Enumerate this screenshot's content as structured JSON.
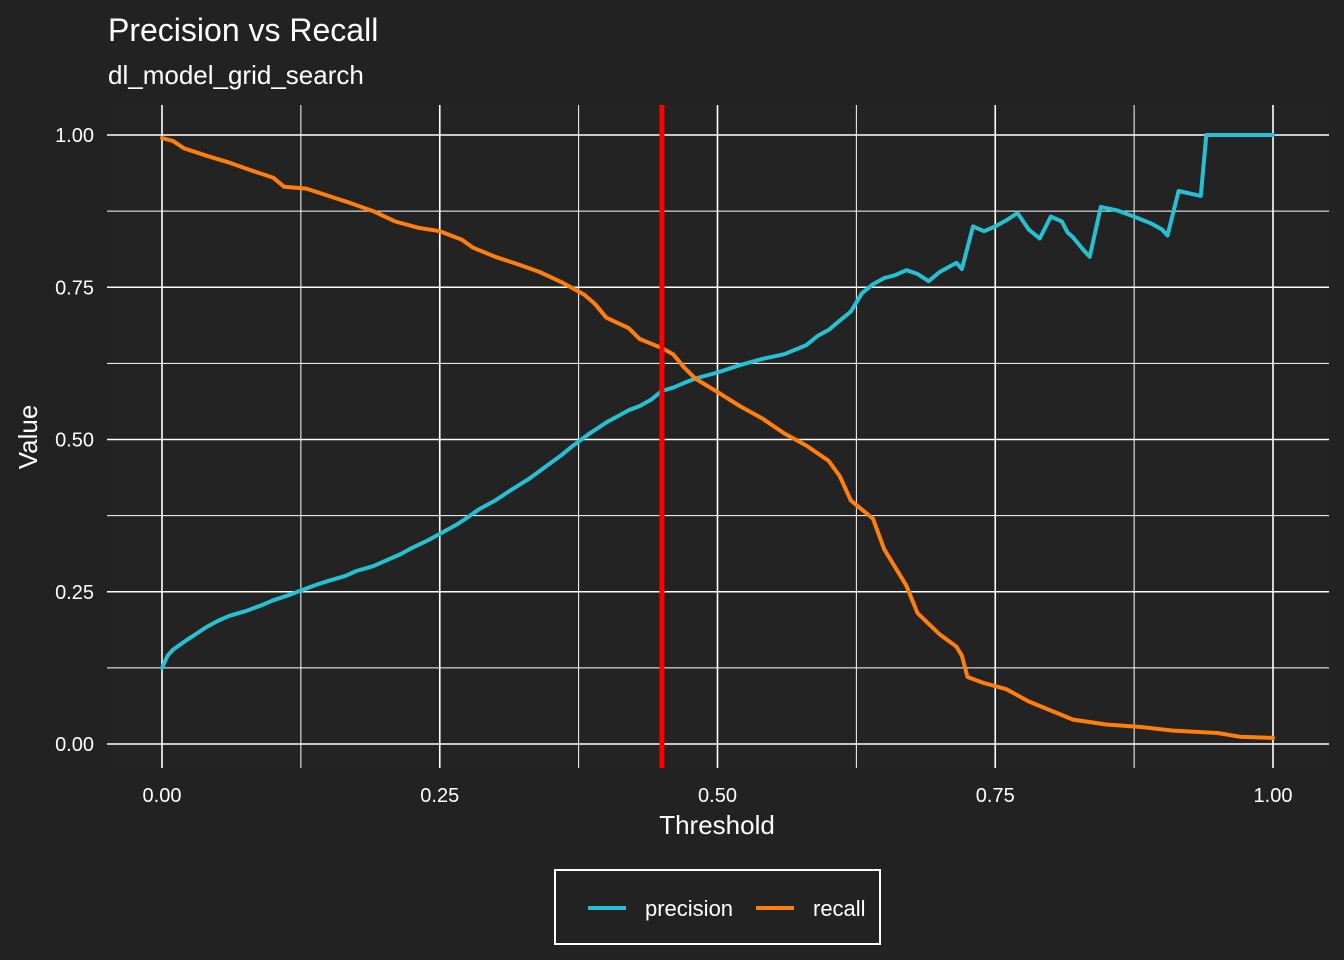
{
  "chart_data": {
    "type": "line",
    "title": "Precision vs Recall",
    "subtitle": "dl_model_grid_search",
    "xlabel": "Threshold",
    "ylabel": "Value",
    "xlim": [
      0,
      1
    ],
    "ylim": [
      0,
      1
    ],
    "x_ticks": [
      "0.00",
      "0.25",
      "0.50",
      "0.75",
      "1.00"
    ],
    "y_ticks": [
      "0.00",
      "0.25",
      "0.50",
      "0.75",
      "1.00"
    ],
    "grid": true,
    "legend_position": "bottom",
    "vline": {
      "x": 0.45,
      "color": "#ff0000"
    },
    "series": [
      {
        "name": "precision",
        "color": "#26c0d3",
        "points": [
          [
            0.0,
            0.125
          ],
          [
            0.005,
            0.145
          ],
          [
            0.01,
            0.155
          ],
          [
            0.02,
            0.168
          ],
          [
            0.03,
            0.18
          ],
          [
            0.04,
            0.192
          ],
          [
            0.05,
            0.202
          ],
          [
            0.06,
            0.21
          ],
          [
            0.075,
            0.218
          ],
          [
            0.09,
            0.228
          ],
          [
            0.1,
            0.236
          ],
          [
            0.115,
            0.245
          ],
          [
            0.125,
            0.252
          ],
          [
            0.14,
            0.262
          ],
          [
            0.15,
            0.268
          ],
          [
            0.165,
            0.276
          ],
          [
            0.175,
            0.284
          ],
          [
            0.19,
            0.292
          ],
          [
            0.2,
            0.3
          ],
          [
            0.215,
            0.312
          ],
          [
            0.225,
            0.322
          ],
          [
            0.24,
            0.335
          ],
          [
            0.25,
            0.345
          ],
          [
            0.265,
            0.36
          ],
          [
            0.275,
            0.372
          ],
          [
            0.285,
            0.385
          ],
          [
            0.3,
            0.4
          ],
          [
            0.315,
            0.418
          ],
          [
            0.33,
            0.435
          ],
          [
            0.345,
            0.455
          ],
          [
            0.36,
            0.475
          ],
          [
            0.37,
            0.49
          ],
          [
            0.385,
            0.51
          ],
          [
            0.4,
            0.528
          ],
          [
            0.41,
            0.538
          ],
          [
            0.42,
            0.548
          ],
          [
            0.43,
            0.555
          ],
          [
            0.44,
            0.565
          ],
          [
            0.45,
            0.58
          ],
          [
            0.46,
            0.585
          ],
          [
            0.47,
            0.593
          ],
          [
            0.48,
            0.6
          ],
          [
            0.5,
            0.61
          ],
          [
            0.52,
            0.622
          ],
          [
            0.54,
            0.632
          ],
          [
            0.56,
            0.64
          ],
          [
            0.58,
            0.655
          ],
          [
            0.59,
            0.67
          ],
          [
            0.6,
            0.68
          ],
          [
            0.61,
            0.695
          ],
          [
            0.62,
            0.71
          ],
          [
            0.63,
            0.74
          ],
          [
            0.64,
            0.755
          ],
          [
            0.65,
            0.765
          ],
          [
            0.66,
            0.77
          ],
          [
            0.67,
            0.778
          ],
          [
            0.68,
            0.772
          ],
          [
            0.69,
            0.76
          ],
          [
            0.7,
            0.775
          ],
          [
            0.71,
            0.785
          ],
          [
            0.715,
            0.79
          ],
          [
            0.72,
            0.78
          ],
          [
            0.73,
            0.85
          ],
          [
            0.74,
            0.842
          ],
          [
            0.75,
            0.85
          ],
          [
            0.76,
            0.86
          ],
          [
            0.77,
            0.872
          ],
          [
            0.78,
            0.845
          ],
          [
            0.79,
            0.83
          ],
          [
            0.8,
            0.866
          ],
          [
            0.81,
            0.858
          ],
          [
            0.815,
            0.84
          ],
          [
            0.82,
            0.832
          ],
          [
            0.83,
            0.81
          ],
          [
            0.835,
            0.8
          ],
          [
            0.845,
            0.882
          ],
          [
            0.86,
            0.876
          ],
          [
            0.875,
            0.866
          ],
          [
            0.89,
            0.855
          ],
          [
            0.9,
            0.845
          ],
          [
            0.905,
            0.835
          ],
          [
            0.915,
            0.908
          ],
          [
            0.935,
            0.9
          ],
          [
            0.94,
            1.0
          ],
          [
            1.0,
            1.0
          ]
        ]
      },
      {
        "name": "recall",
        "color": "#ff7f0e",
        "points": [
          [
            0.0,
            0.995
          ],
          [
            0.01,
            0.99
          ],
          [
            0.02,
            0.978
          ],
          [
            0.04,
            0.966
          ],
          [
            0.06,
            0.955
          ],
          [
            0.08,
            0.942
          ],
          [
            0.1,
            0.93
          ],
          [
            0.11,
            0.915
          ],
          [
            0.13,
            0.912
          ],
          [
            0.15,
            0.9
          ],
          [
            0.17,
            0.888
          ],
          [
            0.19,
            0.875
          ],
          [
            0.21,
            0.858
          ],
          [
            0.23,
            0.848
          ],
          [
            0.25,
            0.842
          ],
          [
            0.27,
            0.828
          ],
          [
            0.28,
            0.815
          ],
          [
            0.3,
            0.8
          ],
          [
            0.32,
            0.788
          ],
          [
            0.34,
            0.775
          ],
          [
            0.36,
            0.758
          ],
          [
            0.38,
            0.738
          ],
          [
            0.39,
            0.722
          ],
          [
            0.4,
            0.7
          ],
          [
            0.42,
            0.683
          ],
          [
            0.43,
            0.665
          ],
          [
            0.45,
            0.65
          ],
          [
            0.46,
            0.64
          ],
          [
            0.47,
            0.618
          ],
          [
            0.48,
            0.6
          ],
          [
            0.5,
            0.578
          ],
          [
            0.52,
            0.555
          ],
          [
            0.54,
            0.535
          ],
          [
            0.56,
            0.51
          ],
          [
            0.58,
            0.49
          ],
          [
            0.6,
            0.465
          ],
          [
            0.61,
            0.44
          ],
          [
            0.62,
            0.4
          ],
          [
            0.64,
            0.37
          ],
          [
            0.65,
            0.32
          ],
          [
            0.67,
            0.26
          ],
          [
            0.68,
            0.215
          ],
          [
            0.7,
            0.18
          ],
          [
            0.715,
            0.16
          ],
          [
            0.72,
            0.145
          ],
          [
            0.725,
            0.11
          ],
          [
            0.74,
            0.1
          ],
          [
            0.76,
            0.09
          ],
          [
            0.78,
            0.07
          ],
          [
            0.8,
            0.055
          ],
          [
            0.82,
            0.04
          ],
          [
            0.85,
            0.032
          ],
          [
            0.88,
            0.028
          ],
          [
            0.91,
            0.022
          ],
          [
            0.95,
            0.018
          ],
          [
            0.97,
            0.012
          ],
          [
            1.0,
            0.01
          ]
        ]
      }
    ]
  }
}
